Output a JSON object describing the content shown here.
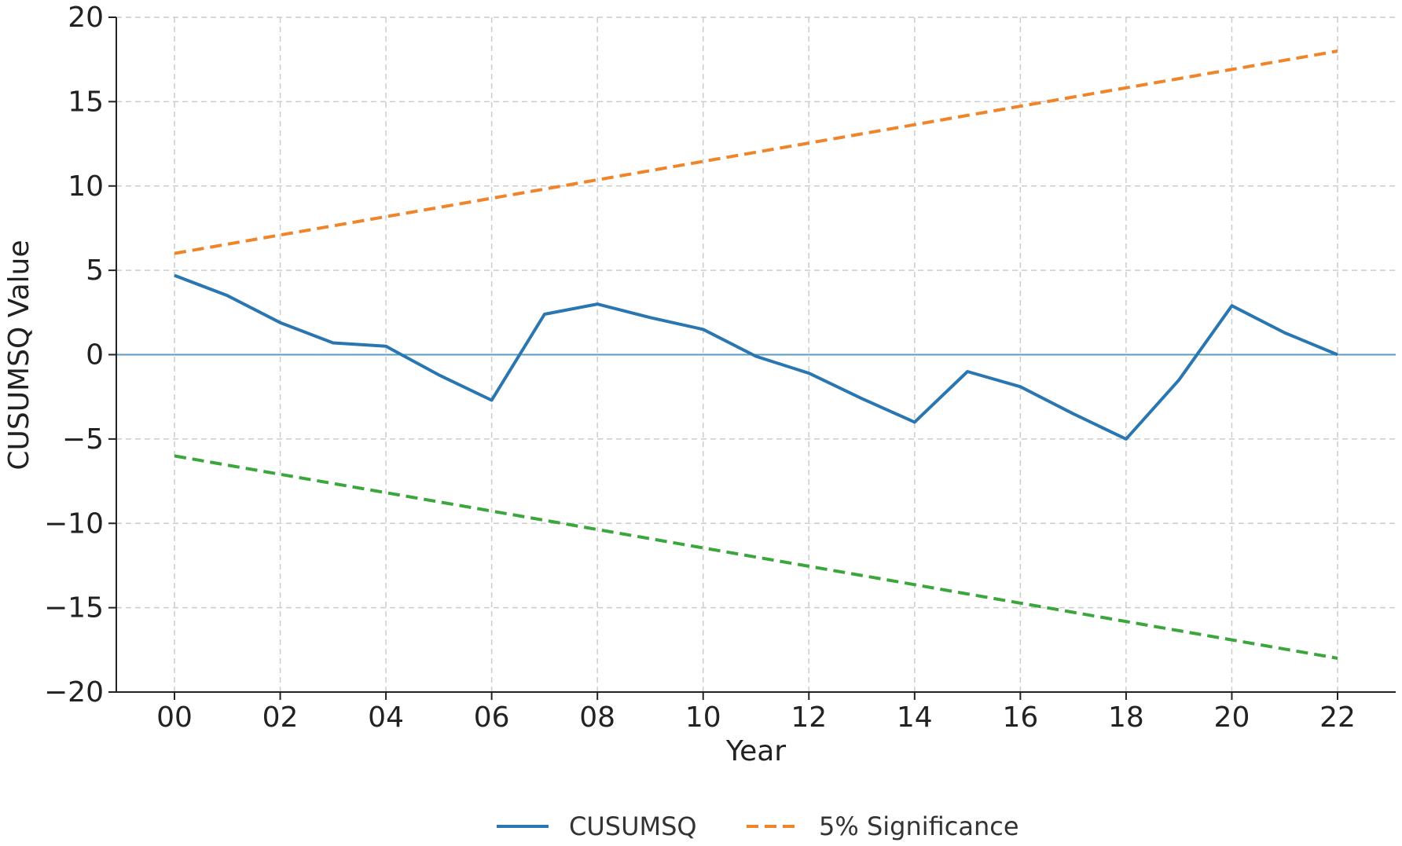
{
  "chart_data": {
    "type": "line",
    "title": "",
    "xlabel": "Year",
    "ylabel": "CUSUMSQ Value",
    "xlim": [
      -1.1,
      23.1
    ],
    "ylim": [
      -20,
      20
    ],
    "x": [
      0,
      1,
      2,
      3,
      4,
      5,
      6,
      7,
      8,
      9,
      10,
      11,
      12,
      13,
      14,
      15,
      16,
      17,
      18,
      19,
      20,
      21,
      22
    ],
    "x_ticks": [
      0,
      2,
      4,
      6,
      8,
      10,
      12,
      14,
      16,
      18,
      20,
      22
    ],
    "x_tick_labels": [
      "00",
      "02",
      "04",
      "06",
      "08",
      "10",
      "12",
      "14",
      "16",
      "18",
      "20",
      "22"
    ],
    "y_ticks": [
      -20,
      -15,
      -10,
      -5,
      0,
      5,
      10,
      15,
      20
    ],
    "y_tick_labels": [
      "−20",
      "−15",
      "−10",
      "−5",
      "0",
      "5",
      "10",
      "15",
      "20"
    ],
    "grid": true,
    "zero_line": true,
    "legend_position": "bottom-center",
    "series": [
      {
        "name": "CUSUMSQ",
        "style": "solid",
        "color": "#2a76b0",
        "values": [
          4.7,
          3.5,
          1.9,
          0.7,
          0.5,
          -1.2,
          -2.7,
          2.4,
          3.0,
          2.2,
          1.5,
          -0.1,
          -1.1,
          -2.6,
          -4.0,
          -1.0,
          -1.9,
          -3.5,
          -5.0,
          -1.5,
          2.9,
          1.3,
          0.0
        ]
      },
      {
        "name": "5% Significance",
        "style": "dashed",
        "color": "#f08428",
        "values": [
          6.0,
          6.545,
          7.091,
          7.636,
          8.182,
          8.727,
          9.273,
          9.818,
          10.364,
          10.909,
          11.455,
          12.0,
          12.545,
          13.091,
          13.636,
          14.182,
          14.727,
          15.273,
          15.818,
          16.364,
          16.909,
          17.455,
          18.0
        ]
      },
      {
        "style": "dashed",
        "color": "#3ba63b",
        "values": [
          -6.0,
          -6.545,
          -7.091,
          -7.636,
          -8.182,
          -8.727,
          -9.273,
          -9.818,
          -10.364,
          -10.909,
          -11.455,
          -12.0,
          -12.545,
          -13.091,
          -13.636,
          -14.182,
          -14.727,
          -15.273,
          -15.818,
          -16.364,
          -16.909,
          -17.455,
          -18.0
        ]
      }
    ],
    "legend": [
      {
        "label": "CUSUMSQ",
        "style": "solid",
        "color": "#2a76b0"
      },
      {
        "label": "5% Significance",
        "style": "dashed",
        "color": "#f08428"
      }
    ],
    "colors": {
      "grid": "#cccccc",
      "axis": "#222222",
      "zero_line": "#5a9bc4"
    }
  }
}
